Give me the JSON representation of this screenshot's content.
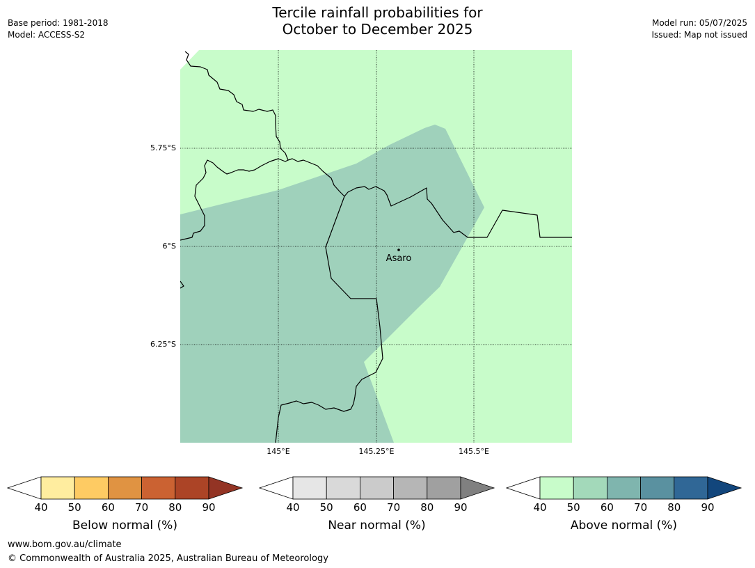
{
  "header": {
    "title_line1": "Tercile rainfall probabilities for",
    "title_line2": "October to December 2025",
    "base_period": "Base period: 1981-2018",
    "model": "Model: ACCESS-S2",
    "model_run": "Model run: 05/07/2025",
    "issued": "Issued: Map not issued"
  },
  "map": {
    "lat_labels": [
      "5.75°S",
      "6°S",
      "6.25°S"
    ],
    "lon_labels": [
      "145°E",
      "145.25°E",
      "145.5°E"
    ],
    "place": "Asaro",
    "colors": {
      "above_40_50": "#c8fcca",
      "above_50_60": "#9fd1bb",
      "border": "#000000",
      "gridline": "#000000"
    }
  },
  "legends": [
    {
      "label": "Below normal (%)",
      "ticks": [
        "40",
        "50",
        "60",
        "70",
        "80",
        "90"
      ],
      "colors": [
        "#ffed9f",
        "#fecb63",
        "#e09342",
        "#cb6232",
        "#ac4426",
        "#933424"
      ]
    },
    {
      "label": "Near normal (%)",
      "ticks": [
        "40",
        "50",
        "60",
        "70",
        "80",
        "90"
      ],
      "colors": [
        "#e6e6e6",
        "#d9d9d9",
        "#cbcbcb",
        "#b6b6b6",
        "#a0a0a0",
        "#808080"
      ]
    },
    {
      "label": "Above normal (%)",
      "ticks": [
        "40",
        "50",
        "60",
        "70",
        "80",
        "90"
      ],
      "colors": [
        "#c8fcca",
        "#a3d9ba",
        "#7fb5ae",
        "#5a91a0",
        "#306796",
        "#12467c"
      ]
    }
  ],
  "footer": {
    "url": "www.bom.gov.au/climate",
    "copyright": "© Commonwealth of Australia 2025, Australian Bureau of Meteorology"
  }
}
